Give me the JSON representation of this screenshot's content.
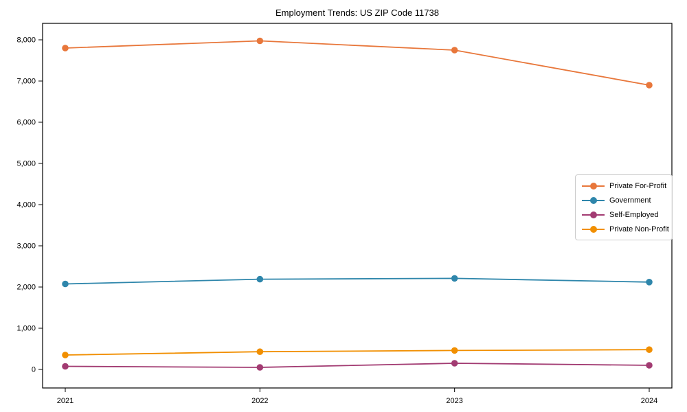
{
  "title": "Employment Trends: US ZIP Code 11738",
  "chart_data": {
    "type": "line",
    "title": "Employment Trends: US ZIP Code 11738",
    "xlabel": "",
    "ylabel": "",
    "x": [
      2021,
      2022,
      2023,
      2024
    ],
    "xtick_labels": [
      "2021",
      "2022",
      "2023",
      "2024"
    ],
    "yticks": [
      0,
      1000,
      2000,
      3000,
      4000,
      5000,
      6000,
      7000,
      8000
    ],
    "ytick_labels": [
      "0",
      "1,000",
      "2,000",
      "3,000",
      "4,000",
      "5,000",
      "6,000",
      "7,000",
      "8,000"
    ],
    "ylim": [
      -450,
      8400
    ],
    "grid": false,
    "frame": "box",
    "marker": "circle",
    "legend_position": "center-right",
    "series": [
      {
        "name": "Private For-Profit",
        "color": "#E8773B",
        "values": [
          7800,
          7975,
          7750,
          6900
        ]
      },
      {
        "name": "Government",
        "color": "#2E86AB",
        "values": [
          2075,
          2190,
          2210,
          2120
        ]
      },
      {
        "name": "Self-Employed",
        "color": "#A23B72",
        "values": [
          75,
          50,
          150,
          100
        ]
      },
      {
        "name": "Private Non-Profit",
        "color": "#F18F01",
        "values": [
          350,
          430,
          460,
          480
        ]
      }
    ]
  },
  "colors": {
    "axis": "#000000",
    "legend_border": "#cccccc",
    "background": "#ffffff"
  }
}
